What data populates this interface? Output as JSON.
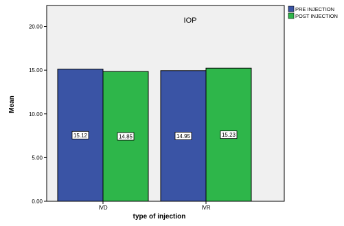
{
  "chart_data": {
    "type": "bar",
    "title": "IOP",
    "xlabel": "type of injection",
    "ylabel": "Mean",
    "categories": [
      "IVD",
      "IVR"
    ],
    "series": [
      {
        "name": "PRE INJECTION",
        "values": [
          15.12,
          14.95
        ],
        "labels": [
          "15.12",
          "14.95"
        ],
        "color": "#3a54a5"
      },
      {
        "name": "POST INJECTION",
        "values": [
          14.85,
          15.23
        ],
        "labels": [
          "14.85",
          "15.23"
        ],
        "color": "#2eb64a"
      }
    ],
    "ylim": [
      0,
      22.4
    ],
    "yticks": [
      0,
      5,
      10,
      15,
      20
    ],
    "ytick_labels": [
      "0.00",
      "5.00",
      "10.00",
      "15.00",
      "20.00"
    ],
    "grid": false,
    "legend": "top-right",
    "plot_background": "#f0f0f0"
  }
}
